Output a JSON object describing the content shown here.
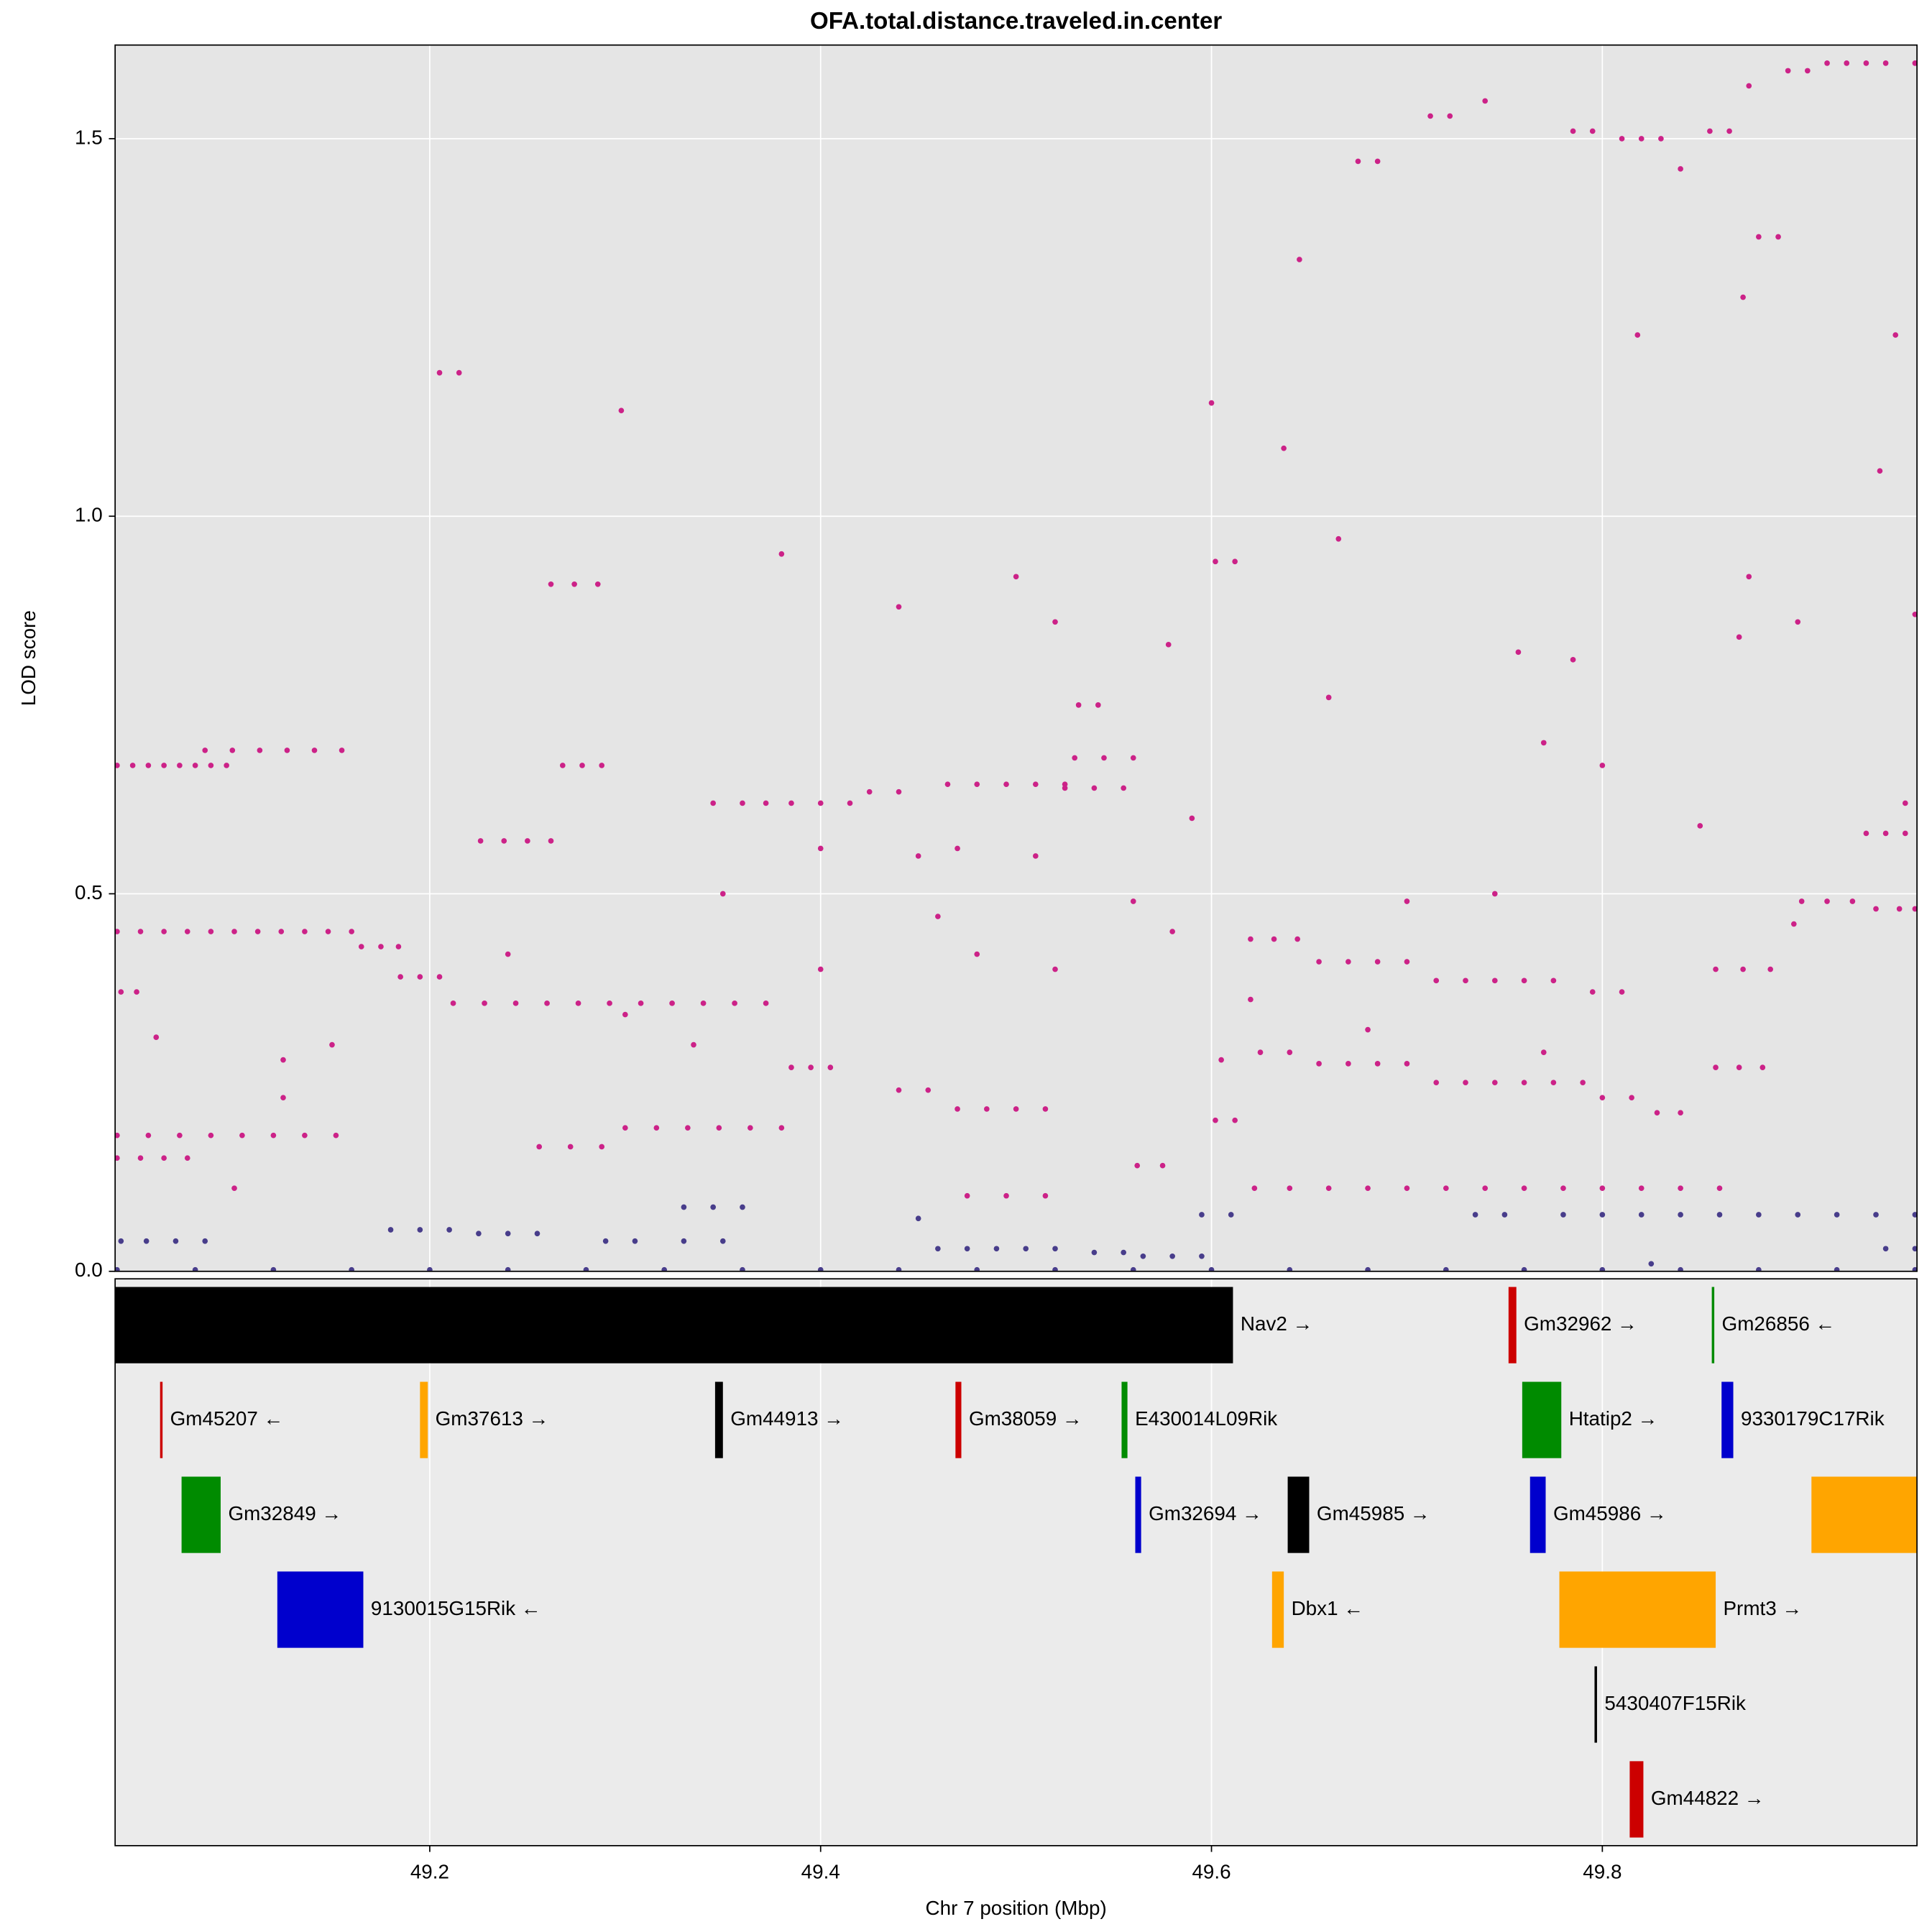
{
  "chart_data": [
    {
      "type": "scatter",
      "title": "OFA.total.distance.traveled.in.center",
      "ylabel": "LOD score",
      "xlim": [
        49.039,
        49.961
      ],
      "xticks": [
        49.2,
        49.4,
        49.6,
        49.8
      ],
      "ylim": [
        0,
        1.624
      ],
      "yticks": [
        {
          "value": 0,
          "label": "0.0"
        },
        0.5,
        {
          "value": 1,
          "label": "1.0"
        },
        1.5
      ],
      "grid": true,
      "series": [
        {
          "color": "#cc2288",
          "x": [
            49.04,
            49.048,
            49.056,
            49.064,
            49.072,
            49.08,
            49.088,
            49.096,
            49.04,
            49.052,
            49.064,
            49.076,
            49.088,
            49.1,
            49.112,
            49.124,
            49.136,
            49.148,
            49.16,
            49.165,
            49.175,
            49.184,
            49.04,
            49.056,
            49.072,
            49.088,
            49.104,
            49.12,
            49.136,
            49.152,
            49.04,
            49.052,
            49.064,
            49.076,
            49.042,
            49.05,
            49.085,
            49.099,
            49.113,
            49.127,
            49.141,
            49.155,
            49.205,
            49.215,
            49.185,
            49.195,
            49.205,
            49.212,
            49.228,
            49.244,
            49.26,
            49.276,
            49.292,
            49.308,
            49.324,
            49.34,
            49.356,
            49.372,
            49.226,
            49.238,
            49.25,
            49.262,
            49.268,
            49.278,
            49.288,
            49.262,
            49.274,
            49.286,
            49.3,
            49.316,
            49.332,
            49.348,
            49.364,
            49.38,
            49.256,
            49.272,
            49.288,
            49.345,
            49.36,
            49.372,
            49.385,
            49.4,
            49.415,
            49.385,
            49.395,
            49.405,
            49.425,
            49.44,
            49.44,
            49.455,
            49.465,
            49.48,
            49.495,
            49.51,
            49.525,
            49.47,
            49.485,
            49.5,
            49.515,
            49.475,
            49.495,
            49.515,
            49.53,
            49.545,
            49.56,
            49.532,
            49.542,
            49.525,
            49.54,
            49.555,
            49.562,
            49.575,
            49.602,
            49.612,
            49.602,
            49.612,
            49.605,
            49.62,
            49.632,
            49.644,
            49.655,
            49.67,
            49.685,
            49.7,
            49.625,
            49.64,
            49.655,
            49.67,
            49.685,
            49.7,
            49.715,
            49.73,
            49.745,
            49.76,
            49.775,
            49.79,
            49.715,
            49.73,
            49.745,
            49.76,
            49.775,
            49.795,
            49.81,
            49.622,
            49.64,
            49.66,
            49.68,
            49.7,
            49.72,
            49.74,
            49.76,
            49.78,
            49.8,
            49.82,
            49.84,
            49.86,
            49.8,
            49.815,
            49.828,
            49.84,
            49.858,
            49.87,
            49.882,
            49.858,
            49.872,
            49.886,
            49.902,
            49.915,
            49.928,
            49.94,
            49.952,
            49.96,
            49.935,
            49.945,
            49.955,
            49.955,
            49.898,
            49.675,
            49.685,
            49.712,
            49.722,
            49.74,
            49.785,
            49.795,
            49.81,
            49.82,
            49.83,
            49.84,
            49.855,
            49.865,
            49.875,
            49.895,
            49.905,
            49.915,
            49.925,
            49.935,
            49.945,
            49.96,
            49.88,
            49.89,
            49.298,
            49.645,
            49.6,
            49.637,
            49.665,
            49.818,
            49.872,
            49.95,
            49.942,
            49.875,
            49.757,
            49.77,
            49.785,
            49.8,
            49.66,
            49.38,
            49.44,
            49.5,
            49.52,
            49.578,
            49.59,
            49.35,
            49.45,
            49.51,
            49.56,
            49.7,
            49.745,
            49.58,
            49.4,
            49.77,
            49.68,
            49.3,
            49.335,
            49.4,
            49.15,
            49.06,
            49.24,
            49.48,
            49.52,
            49.62,
            49.9,
            49.96,
            49.87,
            49.85,
            49.1,
            49.125,
            49.125,
            49.46,
            49.47
          ],
          "values": [
            0.67,
            0.67,
            0.67,
            0.67,
            0.67,
            0.67,
            0.67,
            0.67,
            0.45,
            0.45,
            0.45,
            0.45,
            0.45,
            0.45,
            0.45,
            0.45,
            0.45,
            0.45,
            0.45,
            0.43,
            0.43,
            0.43,
            0.18,
            0.18,
            0.18,
            0.18,
            0.18,
            0.18,
            0.18,
            0.18,
            0.15,
            0.15,
            0.15,
            0.15,
            0.37,
            0.37,
            0.69,
            0.69,
            0.69,
            0.69,
            0.69,
            0.69,
            1.19,
            1.19,
            0.39,
            0.39,
            0.39,
            0.355,
            0.355,
            0.355,
            0.355,
            0.355,
            0.355,
            0.355,
            0.355,
            0.355,
            0.355,
            0.355,
            0.57,
            0.57,
            0.57,
            0.57,
            0.67,
            0.67,
            0.67,
            0.91,
            0.91,
            0.91,
            0.19,
            0.19,
            0.19,
            0.19,
            0.19,
            0.19,
            0.165,
            0.165,
            0.165,
            0.62,
            0.62,
            0.62,
            0.62,
            0.62,
            0.62,
            0.27,
            0.27,
            0.27,
            0.635,
            0.635,
            0.24,
            0.24,
            0.645,
            0.645,
            0.645,
            0.645,
            0.645,
            0.215,
            0.215,
            0.215,
            0.215,
            0.1,
            0.1,
            0.1,
            0.68,
            0.68,
            0.68,
            0.75,
            0.75,
            0.64,
            0.64,
            0.64,
            0.14,
            0.14,
            0.94,
            0.94,
            0.2,
            0.2,
            0.28,
            0.44,
            0.44,
            0.44,
            0.41,
            0.41,
            0.41,
            0.41,
            0.29,
            0.29,
            0.275,
            0.275,
            0.275,
            0.275,
            0.25,
            0.25,
            0.25,
            0.25,
            0.25,
            0.25,
            0.385,
            0.385,
            0.385,
            0.385,
            0.385,
            0.37,
            0.37,
            0.11,
            0.11,
            0.11,
            0.11,
            0.11,
            0.11,
            0.11,
            0.11,
            0.11,
            0.11,
            0.11,
            0.11,
            0.11,
            0.23,
            0.23,
            0.21,
            0.21,
            0.27,
            0.27,
            0.27,
            0.4,
            0.4,
            0.4,
            0.49,
            0.49,
            0.49,
            0.48,
            0.48,
            0.48,
            0.58,
            0.58,
            0.58,
            0.62,
            0.46,
            1.47,
            1.47,
            1.53,
            1.53,
            1.55,
            1.51,
            1.51,
            1.5,
            1.5,
            1.5,
            1.46,
            1.51,
            1.51,
            1.57,
            1.59,
            1.59,
            1.6,
            1.6,
            1.6,
            1.6,
            1.6,
            1.37,
            1.37,
            1.14,
            1.34,
            1.15,
            1.09,
            0.97,
            1.24,
            1.29,
            1.24,
            1.06,
            0.92,
            0.82,
            0.7,
            0.81,
            0.67,
            0.76,
            0.95,
            0.88,
            0.92,
            0.86,
            0.83,
            0.6,
            0.5,
            0.55,
            0.55,
            0.49,
            0.49,
            0.5,
            0.45,
            0.4,
            0.29,
            0.32,
            0.34,
            0.3,
            0.56,
            0.3,
            0.31,
            0.42,
            0.42,
            0.4,
            0.36,
            0.86,
            0.87,
            0.84,
            0.59,
            0.11,
            0.28,
            0.23,
            0.47,
            0.56
          ]
        },
        {
          "color": "#483d8b",
          "x": [
            49.04,
            49.08,
            49.12,
            49.16,
            49.2,
            49.24,
            49.28,
            49.32,
            49.36,
            49.4,
            49.44,
            49.48,
            49.52,
            49.56,
            49.6,
            49.64,
            49.68,
            49.72,
            49.76,
            49.8,
            49.84,
            49.88,
            49.92,
            49.96,
            49.042,
            49.055,
            49.07,
            49.085,
            49.18,
            49.195,
            49.21,
            49.225,
            49.24,
            49.255,
            49.29,
            49.305,
            49.33,
            49.345,
            49.36,
            49.33,
            49.35,
            49.45,
            49.46,
            49.475,
            49.49,
            49.505,
            49.52,
            49.54,
            49.555,
            49.565,
            49.58,
            49.595,
            49.595,
            49.61,
            49.735,
            49.75,
            49.78,
            49.8,
            49.82,
            49.84,
            49.86,
            49.88,
            49.9,
            49.92,
            49.94,
            49.96,
            49.945,
            49.96,
            49.825
          ],
          "values": [
            0.002,
            0.002,
            0.002,
            0.002,
            0.002,
            0.002,
            0.002,
            0.002,
            0.002,
            0.002,
            0.002,
            0.002,
            0.002,
            0.002,
            0.002,
            0.002,
            0.002,
            0.002,
            0.002,
            0.002,
            0.002,
            0.002,
            0.002,
            0.002,
            0.04,
            0.04,
            0.04,
            0.04,
            0.055,
            0.055,
            0.055,
            0.05,
            0.05,
            0.05,
            0.04,
            0.04,
            0.085,
            0.085,
            0.085,
            0.04,
            0.04,
            0.07,
            0.03,
            0.03,
            0.03,
            0.03,
            0.03,
            0.025,
            0.025,
            0.02,
            0.02,
            0.02,
            0.075,
            0.075,
            0.075,
            0.075,
            0.075,
            0.075,
            0.075,
            0.075,
            0.075,
            0.075,
            0.075,
            0.075,
            0.075,
            0.075,
            0.03,
            0.03,
            0.01
          ]
        }
      ]
    },
    {
      "type": "genes",
      "xlabel": "Chr 7 position (Mbp)",
      "genes": [
        {
          "name": "Nav2 →",
          "start": 49.039,
          "end": 49.611,
          "color": "#000000"
        },
        {
          "name": "Gm32962 →",
          "start": 49.752,
          "end": 49.756,
          "color": "#cc0000"
        },
        {
          "name": "Gm26856 ←",
          "start": 49.856,
          "end": 49.857,
          "color": "#008b00"
        },
        {
          "name": "Gm45207 ←",
          "start": 49.062,
          "end": 49.0625,
          "color": "#cc0000"
        },
        {
          "name": "Gm37613 →",
          "start": 49.195,
          "end": 49.199,
          "color": "#ffa500"
        },
        {
          "name": "Gm44913 →",
          "start": 49.346,
          "end": 49.35,
          "color": "#000000"
        },
        {
          "name": "Gm38059 →",
          "start": 49.469,
          "end": 49.472,
          "color": "#cc0000"
        },
        {
          "name": "E430014L09Rik",
          "start": 49.554,
          "end": 49.557,
          "color": "#008b00"
        },
        {
          "name": "Htatip2 →",
          "start": 49.759,
          "end": 49.779,
          "color": "#008b00"
        },
        {
          "name": "9330179C17Rik",
          "start": 49.861,
          "end": 49.867,
          "color": "#0000cd"
        },
        {
          "name": "Gm32849 →",
          "start": 49.073,
          "end": 49.093,
          "color": "#008b00"
        },
        {
          "name": "Gm32694 →",
          "start": 49.561,
          "end": 49.564,
          "color": "#0000cd"
        },
        {
          "name": "Gm45985 →",
          "start": 49.639,
          "end": 49.65,
          "color": "#000000"
        },
        {
          "name": "Gm45986 →",
          "start": 49.763,
          "end": 49.771,
          "color": "#0000cd"
        },
        {
          "start": 49.907,
          "end": 49.97,
          "color": "#ffa500"
        },
        {
          "name": "9130015G15Rik ←",
          "start": 49.122,
          "end": 49.166,
          "color": "#0000cd"
        },
        {
          "name": "Dbx1 ←",
          "start": 49.631,
          "end": 49.637,
          "color": "#ffa500"
        },
        {
          "name": "Prmt3 →",
          "start": 49.778,
          "end": 49.858,
          "color": "#ffa500"
        },
        {
          "name": "5430407F15Rik",
          "start": 49.796,
          "end": 49.797,
          "color": "#000000"
        },
        {
          "name": "Gm44822 →",
          "start": 49.814,
          "end": 49.821,
          "color": "#cc0000"
        }
      ]
    }
  ]
}
